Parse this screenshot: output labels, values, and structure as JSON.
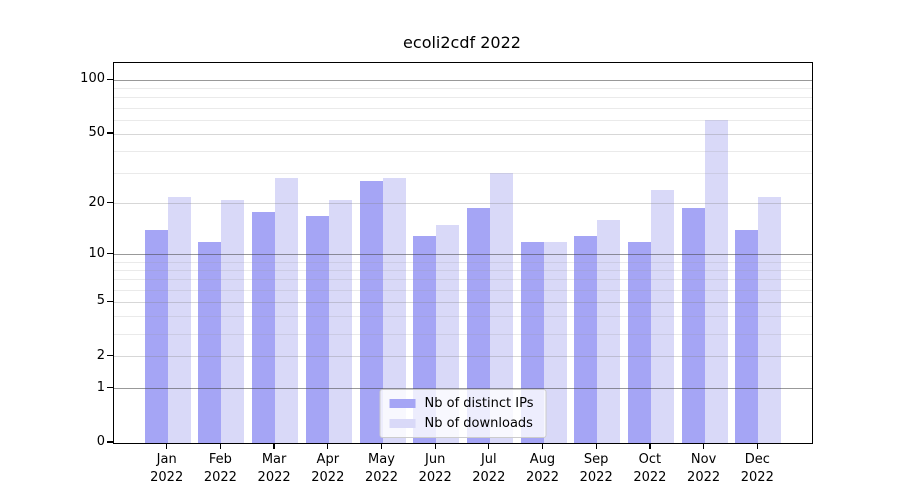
{
  "title": "ecoli2cdf 2022",
  "colors": {
    "ips_bar": "#a5a5f5",
    "downloads_bar": "#d9d9f8",
    "axis": "#000000",
    "grid_major": "#8a8a8a",
    "grid_minor": "#d2d2d2",
    "background": "#ffffff"
  },
  "legend": {
    "entries": [
      {
        "label": "Nb of distinct IPs",
        "color": "#a5a5f5"
      },
      {
        "label": "Nb of downloads",
        "color": "#d9d9f8"
      }
    ]
  },
  "chart_data": {
    "type": "bar",
    "title": "ecoli2cdf 2022",
    "categories": [
      "Jan 2022",
      "Feb 2022",
      "Mar 2022",
      "Apr 2022",
      "May 2022",
      "Jun 2022",
      "Jul 2022",
      "Aug 2022",
      "Sep 2022",
      "Oct 2022",
      "Nov 2022",
      "Dec 2022"
    ],
    "series": [
      {
        "name": "Nb of distinct IPs",
        "color": "#a5a5f5",
        "values": [
          14,
          12,
          18,
          17,
          27,
          13,
          19,
          12,
          13,
          12,
          19,
          14
        ]
      },
      {
        "name": "Nb of downloads",
        "color": "#d9d9f8",
        "values": [
          22,
          21,
          28,
          21,
          28,
          15,
          30,
          12,
          16,
          24,
          60,
          22
        ]
      }
    ],
    "xlabel": "",
    "ylabel": "",
    "yscale": "log1p",
    "ylim": [
      0,
      125
    ],
    "yticks_labeled": [
      0,
      1,
      2,
      5,
      10,
      20,
      50,
      100
    ],
    "yticks_major": [
      1,
      10,
      100
    ],
    "yticks_unlabeled_minor": [
      3,
      4,
      6,
      7,
      8,
      9,
      30,
      40,
      60,
      70,
      80,
      90
    ],
    "grid": true,
    "legend_position": "lower center"
  }
}
